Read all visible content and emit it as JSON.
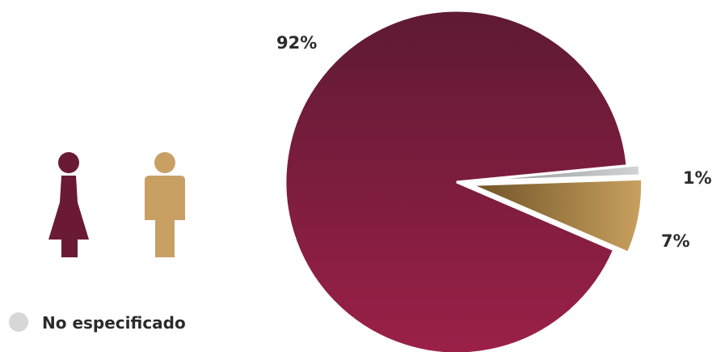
{
  "chart_data": {
    "type": "pie",
    "title": "",
    "slices": [
      {
        "label": "Mujeres",
        "value": 92,
        "display": "92%",
        "color": "#7a1d3f"
      },
      {
        "label": "No especificado",
        "value": 1,
        "display": "1%",
        "color": "#bdbec1"
      },
      {
        "label": "Hombres",
        "value": 7,
        "display": "7%",
        "color": "#b38b4f"
      }
    ],
    "legend": [
      {
        "icon": "female-figure-icon",
        "color": "#6b1a36"
      },
      {
        "icon": "male-figure-icon",
        "color": "#c8a064"
      },
      {
        "icon": "grey-dot-icon",
        "color": "#d6d7d9",
        "label": "No especificado"
      }
    ],
    "legend_placement": "left"
  }
}
